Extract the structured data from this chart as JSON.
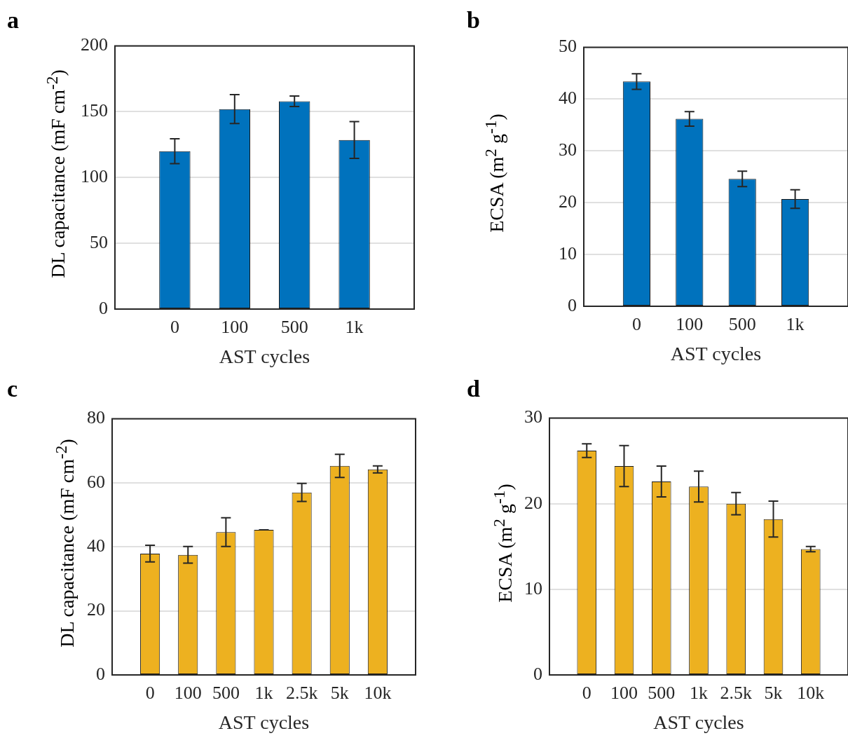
{
  "chart_data": [
    {
      "type": "bar",
      "title": "a",
      "xlabel": "AST cycles",
      "ylabel": "DL capacitance (mF cm$^{-2}$)",
      "categories": [
        "0",
        "100",
        "500",
        "1k"
      ],
      "values": [
        120,
        152,
        158,
        128.5
      ],
      "errors": [
        9.5,
        11,
        4,
        14
      ],
      "color": "#0072bd",
      "ylim": [
        0,
        200
      ],
      "yticks": [
        0,
        50,
        100,
        150,
        200
      ],
      "grid": "y"
    },
    {
      "type": "bar",
      "title": "b",
      "xlabel": "AST cycles",
      "ylabel": "ECSA (m$^{2}$ g$^{-1}$)",
      "categories": [
        "0",
        "100",
        "500",
        "1k"
      ],
      "values": [
        43.4,
        36.2,
        24.6,
        20.7
      ],
      "errors": [
        1.5,
        1.4,
        1.5,
        1.8
      ],
      "color": "#0072bd",
      "ylim": [
        0,
        50
      ],
      "yticks": [
        0,
        10,
        20,
        30,
        40,
        50
      ],
      "grid": "y"
    },
    {
      "type": "bar",
      "title": "c",
      "xlabel": "AST cycles",
      "ylabel": "DL capacitance (mF cm$^{-2}$)",
      "categories": [
        "0",
        "100",
        "500",
        "1k",
        "2.5k",
        "5k",
        "10k"
      ],
      "values": [
        37.9,
        37.5,
        44.6,
        45.3,
        57,
        65.3,
        64.2
      ],
      "errors": [
        2.6,
        2.6,
        4.5,
        0,
        2.8,
        3.6,
        1.1
      ],
      "color": "#edb120",
      "ylim": [
        0,
        80
      ],
      "yticks": [
        0,
        20,
        40,
        60,
        80
      ],
      "grid": "y"
    },
    {
      "type": "bar",
      "title": "d",
      "xlabel": "AST cycles",
      "ylabel": "ECSA (m$^{2}$ g$^{-1}$)",
      "categories": [
        "0",
        "100",
        "500",
        "1k",
        "2.5k",
        "5k",
        "10k"
      ],
      "values": [
        26.2,
        24.4,
        22.6,
        22,
        20,
        18.2,
        14.7
      ],
      "errors": [
        0.8,
        2.4,
        1.8,
        1.8,
        1.3,
        2.1,
        0.3
      ],
      "color": "#edb120",
      "ylim": [
        0,
        30
      ],
      "yticks": [
        0,
        10,
        20,
        30
      ],
      "grid": "y"
    }
  ]
}
